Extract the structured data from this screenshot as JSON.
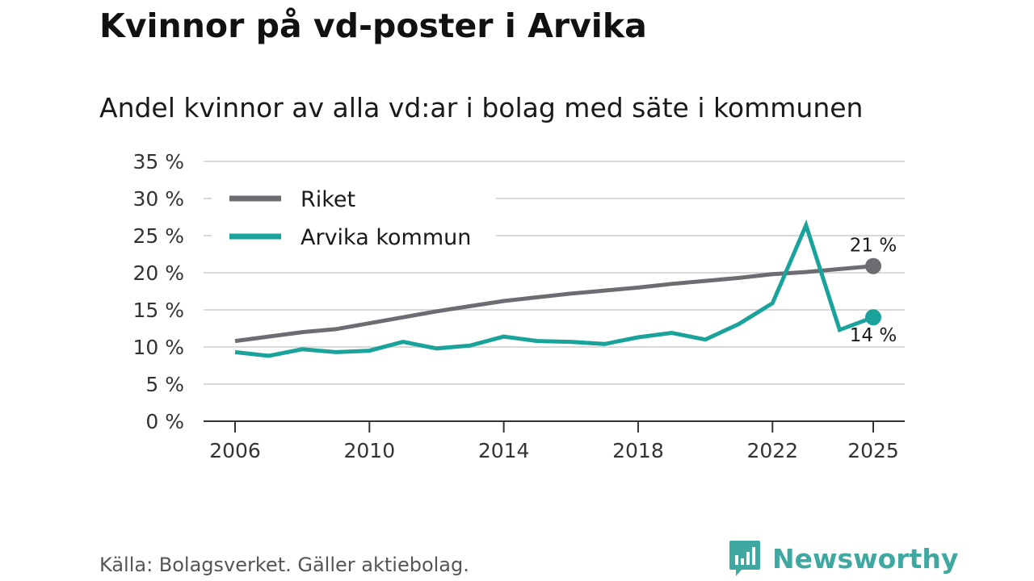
{
  "title": "Kvinnor på vd-poster i Arvika",
  "subtitle": "Andel kvinnor av alla vd:ar i bolag med säte i kommunen",
  "source": "Källa: Bolagsverket. Gäller aktiebolag.",
  "brand": {
    "name": "Newsworthy",
    "icon": "bar-chart-speech-bubble-icon",
    "color": "#3fa8a0"
  },
  "chart_data": {
    "type": "line",
    "title": "Kvinnor på vd-poster i Arvika",
    "subtitle": "Andel kvinnor av alla vd:ar i bolag med säte i kommunen",
    "xlabel": "",
    "ylabel": "",
    "xlim": [
      2006,
      2025
    ],
    "ylim": [
      0,
      35
    ],
    "grid": true,
    "legend_position": "top-left",
    "x_ticks": [
      2006,
      2010,
      2014,
      2018,
      2022,
      2025
    ],
    "x_tick_labels": [
      "2006",
      "2010",
      "2014",
      "2018",
      "2022",
      "2025"
    ],
    "y_ticks": [
      0,
      5,
      10,
      15,
      20,
      25,
      30,
      35
    ],
    "y_tick_labels": [
      "0 %",
      "5 %",
      "10 %",
      "15 %",
      "20 %",
      "25 %",
      "30 %",
      "35 %"
    ],
    "x": [
      2006,
      2007,
      2008,
      2009,
      2010,
      2011,
      2012,
      2013,
      2014,
      2015,
      2016,
      2017,
      2018,
      2019,
      2020,
      2021,
      2022,
      2023,
      2024,
      2025
    ],
    "series": [
      {
        "name": "Riket",
        "color": "#6e6c72",
        "values": [
          10.8,
          11.4,
          12.0,
          12.4,
          13.2,
          14.0,
          14.8,
          15.5,
          16.2,
          16.7,
          17.2,
          17.6,
          18.0,
          18.5,
          18.9,
          19.3,
          19.8,
          20.1,
          20.5,
          20.9
        ],
        "end_label": "21 %",
        "end_label_position": "above"
      },
      {
        "name": "Arvika kommun",
        "color": "#1aa39a",
        "values": [
          9.3,
          8.8,
          9.7,
          9.3,
          9.5,
          10.7,
          9.8,
          10.2,
          11.4,
          10.8,
          10.7,
          10.4,
          11.3,
          11.9,
          11.0,
          13.1,
          15.9,
          26.4,
          12.3,
          14.0
        ],
        "end_label": "14 %",
        "end_label_position": "below"
      }
    ]
  }
}
